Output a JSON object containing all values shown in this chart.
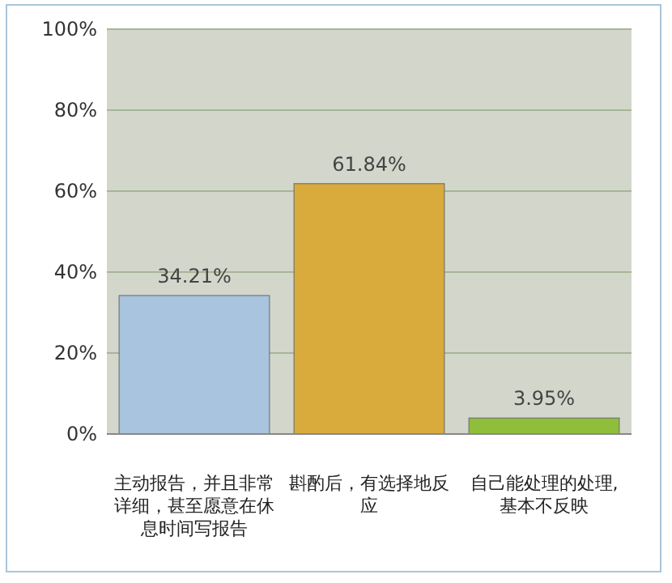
{
  "chart_data": {
    "type": "bar",
    "categories": [
      "主动报告，并且非常详细，甚至愿意在休息时间写报告",
      "斟酌后，有选择地反应",
      "自己能处理的处理, 基本不反映"
    ],
    "values": [
      34.21,
      61.84,
      3.95
    ],
    "colors": [
      "#a8c4de",
      "#d9aa3c",
      "#8fbf3a"
    ],
    "value_labels": [
      "34.21%",
      "61.84%",
      "3.95%"
    ],
    "ylim": [
      0,
      100
    ],
    "yticks": [
      {
        "value": 0,
        "label": "0%"
      },
      {
        "value": 20,
        "label": "20%"
      },
      {
        "value": 40,
        "label": "40%"
      },
      {
        "value": 60,
        "label": "60%"
      },
      {
        "value": 80,
        "label": "80%"
      },
      {
        "value": 100,
        "label": "100%"
      }
    ],
    "grid": "y"
  }
}
